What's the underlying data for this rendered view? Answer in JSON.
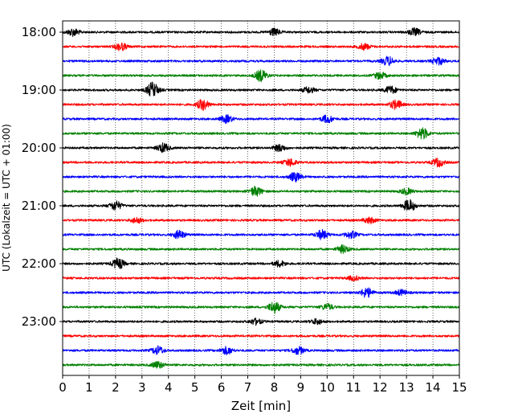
{
  "chart_data": {
    "type": "line",
    "title": "",
    "xlabel": "Zeit  [min]",
    "ylabel": "UTC (Lokalzeit = UTC + 01:00)",
    "xlim": [
      0,
      15
    ],
    "x_ticks": [
      "0",
      "1",
      "2",
      "3",
      "4",
      "5",
      "6",
      "7",
      "8",
      "9",
      "10",
      "11",
      "12",
      "13",
      "14",
      "15"
    ],
    "y_ticks": [
      "18:00",
      "19:00",
      "20:00",
      "21:00",
      "22:00",
      "23:00"
    ],
    "grid": "vertical dotted",
    "legend": "none",
    "color_cycle": [
      "#000000",
      "#ff0000",
      "#0000ff",
      "#008000"
    ],
    "series": [
      {
        "start": "18:00",
        "color": "#000000",
        "bursts": [
          [
            0.4,
            1.0
          ],
          [
            8.0,
            0.9
          ],
          [
            13.3,
            1.0
          ]
        ]
      },
      {
        "start": "18:15",
        "color": "#ff0000",
        "bursts": [
          [
            2.2,
            1.0
          ],
          [
            11.4,
            0.8
          ]
        ]
      },
      {
        "start": "18:30",
        "color": "#0000ff",
        "bursts": [
          [
            12.3,
            1.2
          ],
          [
            14.2,
            1.0
          ]
        ]
      },
      {
        "start": "18:45",
        "color": "#008000",
        "bursts": [
          [
            7.5,
            1.5
          ],
          [
            12.0,
            0.9
          ]
        ]
      },
      {
        "start": "19:00",
        "color": "#000000",
        "bursts": [
          [
            3.4,
            2.0
          ],
          [
            9.3,
            0.8
          ],
          [
            12.4,
            1.0
          ]
        ]
      },
      {
        "start": "19:15",
        "color": "#ff0000",
        "bursts": [
          [
            5.3,
            1.4
          ],
          [
            12.6,
            1.2
          ]
        ]
      },
      {
        "start": "19:30",
        "color": "#0000ff",
        "bursts": [
          [
            6.2,
            1.0
          ],
          [
            10.0,
            1.0
          ]
        ]
      },
      {
        "start": "19:45",
        "color": "#008000",
        "bursts": [
          [
            13.6,
            1.5
          ]
        ]
      },
      {
        "start": "20:00",
        "color": "#000000",
        "bursts": [
          [
            3.8,
            1.2
          ],
          [
            8.2,
            0.9
          ]
        ]
      },
      {
        "start": "20:15",
        "color": "#ff0000",
        "bursts": [
          [
            8.6,
            1.0
          ],
          [
            14.2,
            1.1
          ]
        ]
      },
      {
        "start": "20:30",
        "color": "#0000ff",
        "bursts": [
          [
            8.8,
            1.2
          ]
        ]
      },
      {
        "start": "20:45",
        "color": "#008000",
        "bursts": [
          [
            7.3,
            1.3
          ],
          [
            13.0,
            0.8
          ]
        ]
      },
      {
        "start": "21:00",
        "color": "#000000",
        "bursts": [
          [
            2.0,
            1.2
          ],
          [
            13.1,
            1.6
          ]
        ]
      },
      {
        "start": "21:15",
        "color": "#ff0000",
        "bursts": [
          [
            2.8,
            0.7
          ],
          [
            11.6,
            0.8
          ]
        ]
      },
      {
        "start": "21:30",
        "color": "#0000ff",
        "bursts": [
          [
            4.4,
            1.1
          ],
          [
            9.8,
            1.2
          ],
          [
            10.9,
            0.9
          ]
        ]
      },
      {
        "start": "21:45",
        "color": "#008000",
        "bursts": [
          [
            10.6,
            1.0
          ]
        ]
      },
      {
        "start": "22:00",
        "color": "#000000",
        "bursts": [
          [
            2.1,
            1.4
          ],
          [
            8.2,
            0.8
          ]
        ]
      },
      {
        "start": "22:15",
        "color": "#ff0000",
        "bursts": [
          [
            11.0,
            0.6
          ]
        ]
      },
      {
        "start": "22:30",
        "color": "#0000ff",
        "bursts": [
          [
            11.5,
            1.3
          ],
          [
            12.8,
            0.7
          ]
        ]
      },
      {
        "start": "22:45",
        "color": "#008000",
        "bursts": [
          [
            8.0,
            1.5
          ],
          [
            10.0,
            0.8
          ]
        ]
      },
      {
        "start": "23:00",
        "color": "#000000",
        "bursts": [
          [
            7.3,
            0.8
          ],
          [
            9.6,
            0.7
          ]
        ]
      },
      {
        "start": "23:15",
        "color": "#ff0000",
        "bursts": []
      },
      {
        "start": "23:30",
        "color": "#0000ff",
        "bursts": [
          [
            3.6,
            1.1
          ],
          [
            6.2,
            1.0
          ],
          [
            8.9,
            1.0
          ]
        ]
      },
      {
        "start": "23:45",
        "color": "#008000",
        "bursts": [
          [
            3.6,
            0.9
          ]
        ]
      }
    ]
  }
}
